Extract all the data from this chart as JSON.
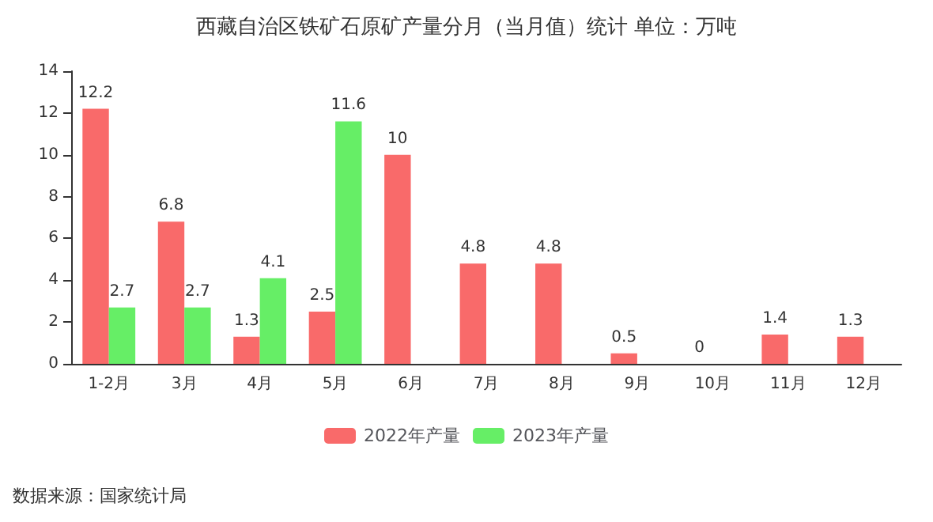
{
  "chart_data": {
    "type": "bar",
    "title": "西藏自治区铁矿石原矿产量分月（当月值）统计 单位：万吨",
    "categories": [
      "1-2月",
      "3月",
      "4月",
      "5月",
      "6月",
      "7月",
      "8月",
      "9月",
      "10月",
      "11月",
      "12月"
    ],
    "series": [
      {
        "name": "2022年产量",
        "color": "#f96a6a",
        "values": [
          12.2,
          6.8,
          1.3,
          2.5,
          10,
          4.8,
          4.8,
          0.5,
          0,
          1.4,
          1.3
        ]
      },
      {
        "name": "2023年产量",
        "color": "#66ee66",
        "values": [
          2.7,
          2.7,
          4.1,
          11.6,
          null,
          null,
          null,
          null,
          null,
          null,
          null
        ]
      }
    ],
    "ylim": [
      0,
      14
    ],
    "yticks": [
      0,
      2,
      4,
      6,
      8,
      10,
      12,
      14
    ],
    "grid": false,
    "legend": "bottom",
    "data_labels": true,
    "annotations": [
      "数据来源：国家统计局"
    ]
  }
}
